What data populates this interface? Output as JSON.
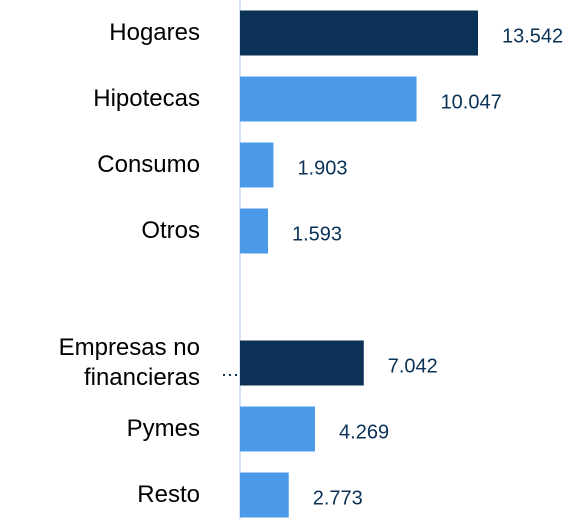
{
  "chart_data": {
    "type": "hbar",
    "categories": [
      "Hogares",
      "Hipotecas",
      "Consumo",
      "Otros",
      null,
      "Empresas no financieras",
      "Pymes",
      "Resto"
    ],
    "values": [
      13542,
      10047,
      1903,
      1593,
      null,
      7042,
      4269,
      2773
    ],
    "value_labels": [
      "13.542",
      "10.047",
      "1.903",
      "1.593",
      null,
      "7.042",
      "4.269",
      "2.773"
    ],
    "colors": [
      "#0b3256",
      "#4a9ae8",
      "#4a9ae8",
      "#4a9ae8",
      null,
      "#0b3256",
      "#4a9ae8",
      "#4a9ae8"
    ]
  }
}
